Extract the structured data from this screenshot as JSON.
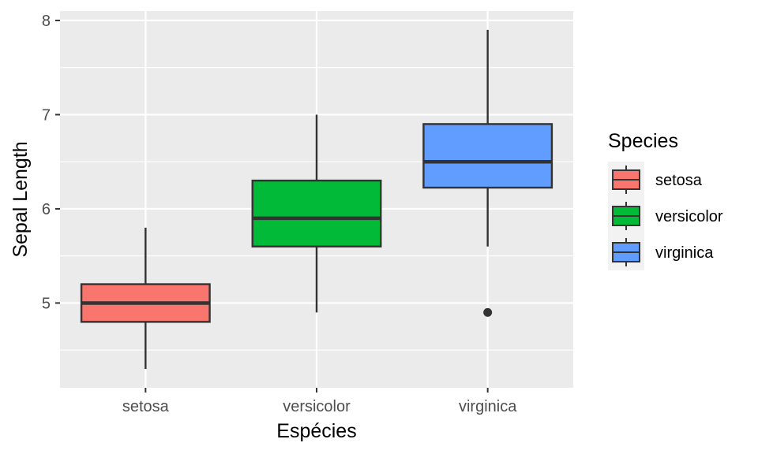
{
  "chart_data": {
    "type": "boxplot",
    "xlabel": "Espécies",
    "ylabel": "Sepal Length",
    "ylim": [
      4.1,
      8.1
    ],
    "yticks": [
      5,
      6,
      7,
      8
    ],
    "grid": true,
    "legend_title": "Species",
    "legend_position": "right",
    "categories": [
      "setosa",
      "versicolor",
      "virginica"
    ],
    "boxes": [
      {
        "name": "setosa",
        "color": "#F8766D",
        "min": 4.3,
        "q1": 4.8,
        "median": 5.0,
        "q3": 5.2,
        "max": 5.8,
        "outliers": []
      },
      {
        "name": "versicolor",
        "color": "#00BA38",
        "min": 4.9,
        "q1": 5.6,
        "median": 5.9,
        "q3": 6.3,
        "max": 7.0,
        "outliers": []
      },
      {
        "name": "virginica",
        "color": "#619CFF",
        "min": 5.6,
        "q1": 6.225,
        "median": 6.5,
        "q3": 6.9,
        "max": 7.9,
        "outliers": [
          4.9
        ]
      }
    ],
    "colors": {
      "panel": "#EBEBEB",
      "grid": "#FFFFFF",
      "outline": "#333333"
    }
  }
}
